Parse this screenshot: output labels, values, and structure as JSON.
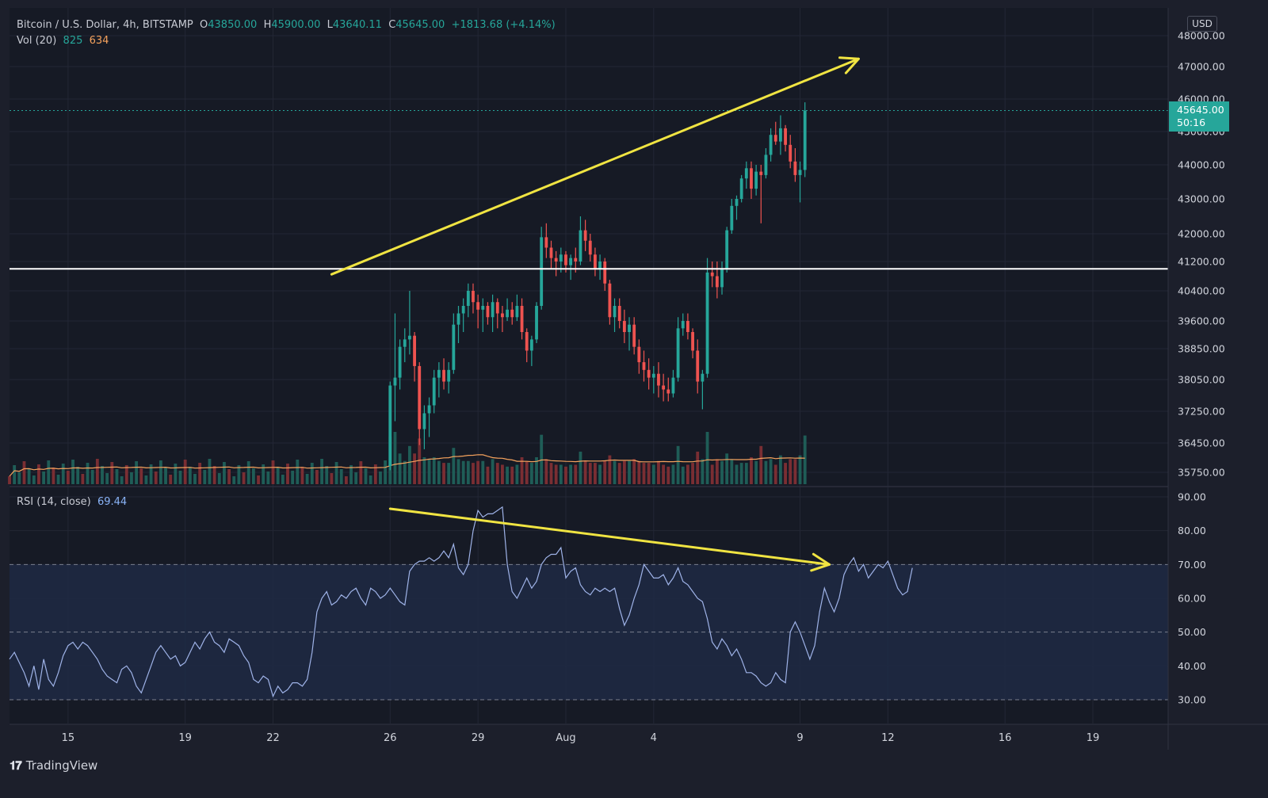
{
  "header": {
    "symbol": "Bitcoin / U.S. Dollar, 4h, BITSTAMP",
    "o_label": "O",
    "o_value": "43850.00",
    "h_label": "H",
    "h_value": "45900.00",
    "l_label": "L",
    "l_value": "43640.11",
    "c_label": "C",
    "c_value": "45645.00",
    "change": "+1813.68 (+4.14%)",
    "vol_label": "Vol (20)",
    "vol_value": "825",
    "vol_ma_value": "634"
  },
  "rsi_header": {
    "label": "RSI (14, close)",
    "value": "69.44"
  },
  "currency": "USD",
  "last_price": {
    "price": "45645.00",
    "countdown": "50:16",
    "value": 45645
  },
  "brand": "TradingView",
  "colors": {
    "background": "#1c1f2b",
    "up": "#26a69a",
    "down": "#ef5350",
    "rsi_line": "#9fb3e8",
    "rsi_band": "#1e2a44",
    "annotation": "#f0e442",
    "support": "#ffffff",
    "vol_ma": "#f5a25d"
  },
  "chart_data": [
    {
      "type": "candlestick",
      "title": "Bitcoin / U.S. Dollar, 4h, BITSTAMP",
      "y_ticks": [
        "48000.00",
        "47000.00",
        "46000.00",
        "45000.00",
        "44000.00",
        "43000.00",
        "42000.00",
        "41200.00",
        "40400.00",
        "39600.00",
        "38850.00",
        "38050.00",
        "37250.00",
        "36450.00",
        "35750.00"
      ],
      "x_ticks": [
        "15",
        "19",
        "22",
        "26",
        "29",
        "Aug",
        "4",
        "9",
        "12",
        "16",
        "19"
      ],
      "support_level": 41000,
      "annotations": [
        {
          "kind": "arrow",
          "from": [
            "2021-07-24",
            40850
          ],
          "to": [
            "2021-08-11",
            47250
          ]
        }
      ],
      "candles_start": "2021-07-26 00:00",
      "candle_interval_hours": 4,
      "candles": [
        [
          35900,
          38000,
          35800,
          37900
        ],
        [
          37900,
          39800,
          37000,
          38100
        ],
        [
          38100,
          39100,
          37800,
          38900
        ],
        [
          38900,
          39400,
          38500,
          39100
        ],
        [
          39100,
          40400,
          38700,
          39200
        ],
        [
          39200,
          39300,
          38000,
          38400
        ],
        [
          38400,
          38500,
          36400,
          36800
        ],
        [
          36800,
          37400,
          36300,
          37200
        ],
        [
          37200,
          37600,
          36600,
          37400
        ],
        [
          37400,
          38300,
          37200,
          38100
        ],
        [
          38100,
          38500,
          37600,
          38300
        ],
        [
          38300,
          38600,
          37800,
          38000
        ],
        [
          38000,
          38500,
          37700,
          38300
        ],
        [
          38300,
          39800,
          38200,
          39500
        ],
        [
          39500,
          40000,
          39000,
          39800
        ],
        [
          39800,
          40200,
          39300,
          40000
        ],
        [
          40000,
          40600,
          39700,
          40400
        ],
        [
          40400,
          40600,
          39800,
          40100
        ],
        [
          40100,
          40300,
          39400,
          39900
        ],
        [
          39900,
          40200,
          39300,
          40000
        ],
        [
          40000,
          40100,
          39500,
          39700
        ],
        [
          39700,
          40300,
          39300,
          40100
        ],
        [
          40100,
          40200,
          39400,
          39800
        ],
        [
          39800,
          40000,
          39300,
          39700
        ],
        [
          39700,
          40200,
          39600,
          39900
        ],
        [
          39900,
          40100,
          39500,
          39700
        ],
        [
          39700,
          40300,
          39600,
          40000
        ],
        [
          40000,
          40200,
          39100,
          39300
        ],
        [
          39300,
          39400,
          38500,
          38800
        ],
        [
          38800,
          39200,
          38400,
          39100
        ],
        [
          39100,
          40100,
          39000,
          40000
        ],
        [
          40000,
          42200,
          39900,
          41900
        ],
        [
          41900,
          42300,
          41300,
          41600
        ],
        [
          41600,
          41800,
          41000,
          41300
        ],
        [
          41300,
          41500,
          40800,
          41200
        ],
        [
          41200,
          41600,
          40900,
          41400
        ],
        [
          41400,
          41500,
          40900,
          41100
        ],
        [
          41100,
          41400,
          40700,
          41300
        ],
        [
          41300,
          41600,
          40900,
          41200
        ],
        [
          41200,
          42500,
          41100,
          42100
        ],
        [
          42100,
          42400,
          41500,
          41800
        ],
        [
          41800,
          42000,
          41200,
          41400
        ],
        [
          41400,
          41600,
          40800,
          41000
        ],
        [
          41000,
          41400,
          40700,
          41200
        ],
        [
          41200,
          41300,
          40400,
          40600
        ],
        [
          40600,
          40700,
          39500,
          39700
        ],
        [
          39700,
          40200,
          39300,
          40000
        ],
        [
          40000,
          40200,
          39400,
          39600
        ],
        [
          39600,
          39900,
          39000,
          39300
        ],
        [
          39300,
          39700,
          38800,
          39500
        ],
        [
          39500,
          39700,
          38700,
          38900
        ],
        [
          38900,
          39100,
          38200,
          38500
        ],
        [
          38500,
          38800,
          38000,
          38300
        ],
        [
          38300,
          38600,
          37800,
          38100
        ],
        [
          38100,
          38400,
          37700,
          38200
        ],
        [
          38200,
          38500,
          37600,
          37900
        ],
        [
          37900,
          38200,
          37500,
          37800
        ],
        [
          37800,
          38100,
          37500,
          37700
        ],
        [
          37700,
          38300,
          37600,
          38100
        ],
        [
          38100,
          39700,
          38000,
          39400
        ],
        [
          39400,
          39800,
          39200,
          39600
        ],
        [
          39600,
          39800,
          39100,
          39300
        ],
        [
          39300,
          39400,
          38600,
          38800
        ],
        [
          38800,
          39100,
          37700,
          38000
        ],
        [
          38000,
          38300,
          37300,
          38200
        ],
        [
          38200,
          41300,
          38100,
          40900
        ],
        [
          40900,
          41200,
          40500,
          40800
        ],
        [
          40800,
          41200,
          40200,
          40500
        ],
        [
          40500,
          41200,
          40300,
          41000
        ],
        [
          41000,
          42200,
          40900,
          42100
        ],
        [
          42100,
          43000,
          42000,
          42800
        ],
        [
          42800,
          43100,
          42400,
          43000
        ],
        [
          43000,
          43700,
          42900,
          43600
        ],
        [
          43600,
          44100,
          43300,
          43900
        ],
        [
          43900,
          44100,
          43000,
          43300
        ],
        [
          43300,
          44000,
          43100,
          43800
        ],
        [
          43800,
          44000,
          42300,
          43700
        ],
        [
          43700,
          44500,
          43600,
          44300
        ],
        [
          44300,
          45100,
          44100,
          44900
        ],
        [
          44900,
          45300,
          44600,
          44700
        ],
        [
          44700,
          45500,
          44300,
          45100
        ],
        [
          45100,
          45200,
          44400,
          44600
        ],
        [
          44600,
          44900,
          43900,
          44100
        ],
        [
          44100,
          44500,
          43500,
          43700
        ],
        [
          43700,
          44100,
          42900,
          43850
        ],
        [
          43850,
          45900,
          43640,
          45645
        ]
      ],
      "volume_series": {
        "name": "Vol (20)"
      },
      "volume_ma_series": {
        "name": "Vol (20) MA"
      }
    },
    {
      "type": "line",
      "title": "RSI (14, close)",
      "y_ticks": [
        "90.00",
        "80.00",
        "70.00",
        "60.00",
        "50.00",
        "40.00",
        "30.00"
      ],
      "ylim": [
        26,
        92
      ],
      "bands": [
        30,
        50,
        70
      ],
      "annotations": [
        {
          "kind": "arrow",
          "from": [
            "2021-07-26",
            86.5
          ],
          "to": [
            "2021-08-10",
            70
          ]
        }
      ],
      "x_start": "2021-07-13 00:00",
      "x_interval_hours": 4,
      "values": [
        42,
        44,
        41,
        38,
        34,
        40,
        33,
        42,
        36,
        34,
        38,
        43,
        46,
        47,
        45,
        47,
        46,
        44,
        42,
        39,
        37,
        36,
        35,
        39,
        40,
        38,
        34,
        32,
        36,
        40,
        44,
        46,
        44,
        42,
        43,
        40,
        41,
        44,
        47,
        45,
        48,
        50,
        47,
        46,
        44,
        48,
        47,
        46,
        43,
        41,
        36,
        35,
        37,
        36,
        31,
        34,
        32,
        33,
        35,
        35,
        34,
        36,
        44,
        56,
        60,
        62,
        58,
        59,
        61,
        60,
        62,
        63,
        60,
        58,
        63,
        62,
        60,
        61,
        63,
        61,
        59,
        58,
        68,
        70,
        71,
        71,
        72,
        71,
        72,
        74,
        72,
        76,
        69,
        67,
        70,
        80,
        86,
        84,
        85,
        85,
        86,
        87,
        70,
        62,
        60,
        63,
        66,
        63,
        65,
        70,
        72,
        73,
        73,
        75,
        66,
        68,
        69,
        64,
        62,
        61,
        63,
        62,
        63,
        62,
        63,
        57,
        52,
        55,
        60,
        64,
        70,
        68,
        66,
        66,
        67,
        64,
        66,
        69,
        65,
        64,
        62,
        60,
        59,
        54,
        47,
        45,
        48,
        46,
        43,
        45,
        42,
        38,
        38,
        37,
        35,
        34,
        35,
        38,
        36,
        35,
        50,
        53,
        50,
        46,
        42,
        46,
        56,
        63,
        59,
        56,
        60,
        67,
        70,
        72,
        68,
        70,
        66,
        68,
        70,
        69,
        71,
        67,
        63,
        61,
        62,
        69
      ],
      "last_value": 69.44
    }
  ]
}
